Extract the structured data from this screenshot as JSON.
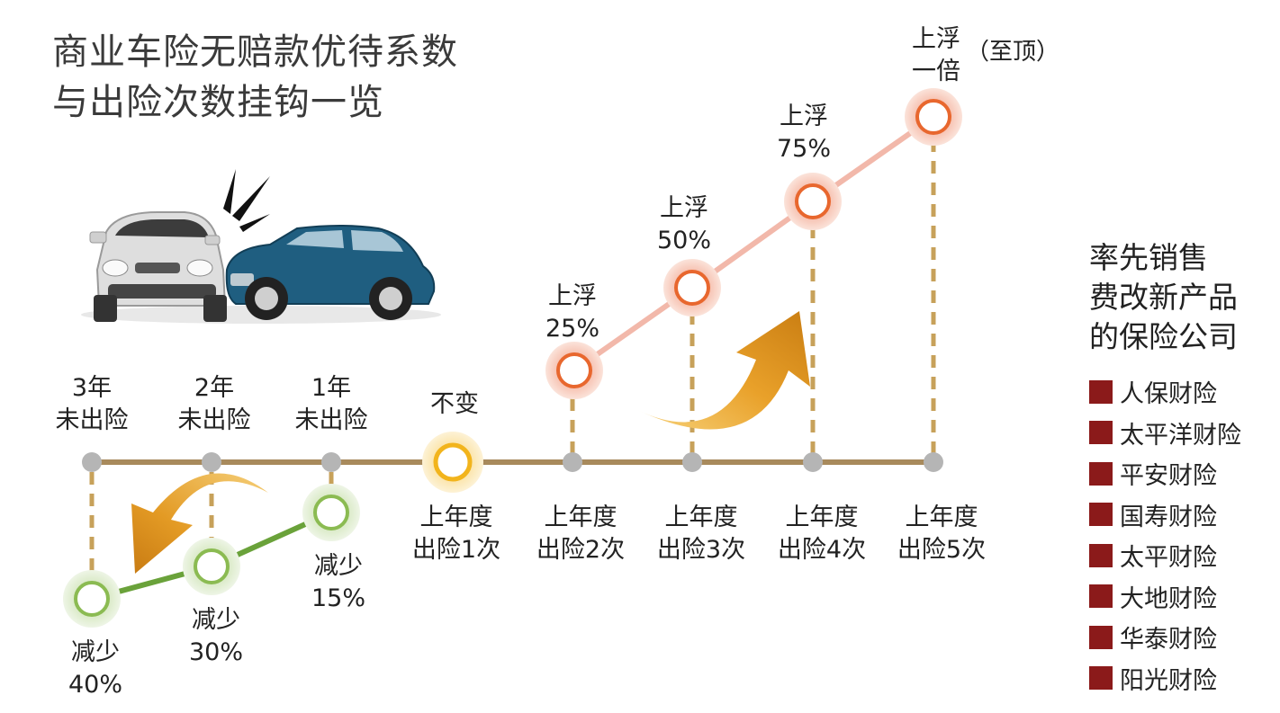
{
  "title": {
    "line1": "商业车险无赔款优待系数",
    "line2": "与出险次数挂钩一览"
  },
  "timeline": {
    "top_labels": [
      {
        "line1": "3年",
        "line2": "未出险"
      },
      {
        "line1": "2年",
        "line2": "未出险"
      },
      {
        "line1": "1年",
        "line2": "未出险"
      },
      {
        "line1": "",
        "line2": "不变"
      }
    ],
    "bottom_labels": [
      {
        "line1": "上年度",
        "line2": "出险1次"
      },
      {
        "line1": "上年度",
        "line2": "出险2次"
      },
      {
        "line1": "上年度",
        "line2": "出险3次"
      },
      {
        "line1": "上年度",
        "line2": "出险4次"
      },
      {
        "line1": "上年度",
        "line2": "出险5次"
      }
    ]
  },
  "discounts": [
    {
      "line1": "减少",
      "line2": "40%"
    },
    {
      "line1": "减少",
      "line2": "30%"
    },
    {
      "line1": "减少",
      "line2": "15%"
    }
  ],
  "increases": [
    {
      "line1": "上浮",
      "line2": "25%"
    },
    {
      "line1": "上浮",
      "line2": "50%"
    },
    {
      "line1": "上浮",
      "line2": "75%"
    },
    {
      "line1": "上浮",
      "line2": "一倍",
      "note": "（至顶）"
    }
  ],
  "legend": {
    "title_line1": "率先销售",
    "title_line2": "费改新产品",
    "title_line3": "的保险公司",
    "companies": [
      "人保财险",
      "太平洋财险",
      "平安财险",
      "国寿财险",
      "太平财险",
      "大地财险",
      "华泰财险",
      "阳光财险"
    ]
  },
  "colors": {
    "timeline": "#a88a5c",
    "node_gray": "#b5b5b5",
    "increase_line": "#f2b8aa",
    "increase_node": "#e8672e",
    "increase_halo": "#f8cbbd",
    "decrease_line": "#6aa23a",
    "decrease_node": "#8bbb52",
    "neutral_node": "#f2b41c",
    "dash": "#c7a15a",
    "legend_swatch": "#8b1a1a",
    "car_white": "#d9d9d9",
    "car_blue": "#1f5e80",
    "arrow_gold": "#e6a31f"
  },
  "icons": [
    "car-crash-illustration",
    "curved-up-arrow",
    "curved-left-arrow"
  ]
}
